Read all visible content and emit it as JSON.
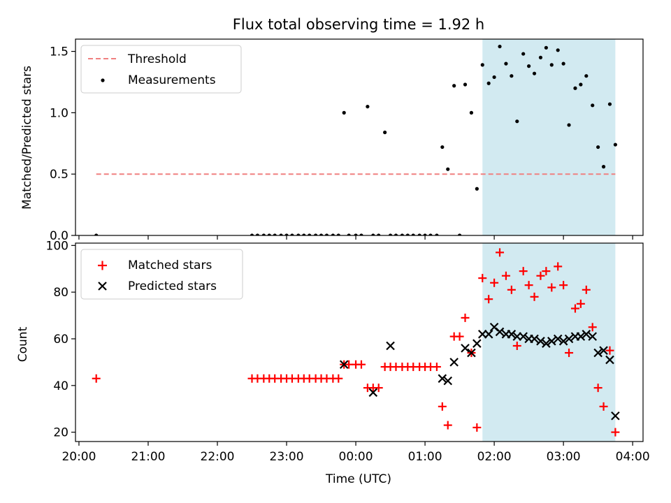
{
  "chart_data": [
    {
      "type": "scatter",
      "title": "Flux total observing time = 1.92 h",
      "xlabel": "",
      "ylabel": "Matched/Predicted stars",
      "xlim": [
        -4.05,
        4.15
      ],
      "ylim": [
        0,
        1.6
      ],
      "yticks": [
        0.0,
        0.5,
        1.0,
        1.5
      ],
      "ytick_labels": [
        "0.0",
        "0.5",
        "1.0",
        "1.5"
      ],
      "xticks": [
        -4,
        -3,
        -2,
        -1,
        0,
        1,
        2,
        3,
        4
      ],
      "grid": false,
      "legend_position": "top-left",
      "shaded_region": {
        "x": [
          1.83,
          3.75
        ],
        "color": "#add8e6"
      },
      "series": [
        {
          "name": "Threshold",
          "kind": "dashed-line",
          "color": "#f08080",
          "x": [
            -3.75,
            3.75
          ],
          "y": [
            0.5,
            0.5
          ]
        },
        {
          "name": "Measurements",
          "kind": "dots",
          "color": "#000000",
          "x": [
            -3.75,
            -1.5,
            -1.42,
            -1.33,
            -1.25,
            -1.17,
            -1.08,
            -1.0,
            -0.92,
            -0.83,
            -0.75,
            -0.67,
            -0.58,
            -0.5,
            -0.42,
            -0.33,
            -0.25,
            -0.17,
            -0.1,
            0.0,
            0.08,
            0.17,
            0.25,
            0.33,
            0.42,
            0.5,
            0.58,
            0.67,
            0.75,
            0.83,
            0.92,
            1.0,
            1.08,
            1.17,
            1.25,
            1.33,
            1.42,
            1.5,
            1.58,
            1.67,
            1.75,
            1.83,
            1.92,
            2.0,
            2.08,
            2.17,
            2.25,
            2.33,
            2.42,
            2.5,
            2.58,
            2.67,
            2.75,
            2.83,
            2.92,
            3.0,
            3.08,
            3.17,
            3.25,
            3.33,
            3.42,
            3.5,
            3.58,
            3.67,
            3.75
          ],
          "y": [
            0,
            0,
            0,
            0,
            0,
            0,
            0,
            0,
            0,
            0,
            0,
            0,
            0,
            0,
            0,
            0,
            0,
            1.0,
            0,
            0,
            0,
            1.05,
            0,
            0,
            0.84,
            0,
            0,
            0,
            0,
            0,
            0,
            0,
            0,
            0,
            0.72,
            0.54,
            1.22,
            0,
            1.23,
            1.0,
            0.38,
            1.39,
            1.24,
            1.29,
            1.54,
            1.4,
            1.3,
            0.93,
            1.48,
            1.38,
            1.32,
            1.45,
            1.53,
            1.39,
            1.51,
            1.4,
            0.9,
            1.2,
            1.23,
            1.3,
            1.06,
            0.72,
            0.56,
            1.07,
            0.74
          ]
        }
      ]
    },
    {
      "type": "scatter",
      "title": "",
      "xlabel": "Time (UTC)",
      "ylabel": "Count",
      "xlim": [
        -4.05,
        4.15
      ],
      "ylim": [
        16,
        101
      ],
      "yticks": [
        20,
        40,
        60,
        80,
        100
      ],
      "ytick_labels": [
        "20",
        "40",
        "60",
        "80",
        "100"
      ],
      "xticks": [
        -4,
        -3,
        -2,
        -1,
        0,
        1,
        2,
        3,
        4
      ],
      "xtick_labels": [
        "20:00",
        "21:00",
        "22:00",
        "23:00",
        "00:00",
        "01:00",
        "02:00",
        "03:00",
        "04:00"
      ],
      "grid": false,
      "legend_position": "top-left",
      "shaded_region": {
        "x": [
          1.83,
          3.75
        ],
        "color": "#add8e6"
      },
      "series": [
        {
          "name": "Matched stars",
          "marker": "plus",
          "color": "#ff0000",
          "x": [
            -3.75,
            -1.5,
            -1.42,
            -1.33,
            -1.25,
            -1.17,
            -1.08,
            -1.0,
            -0.92,
            -0.83,
            -0.75,
            -0.67,
            -0.58,
            -0.5,
            -0.42,
            -0.33,
            -0.25,
            -0.17,
            -0.1,
            0.0,
            0.08,
            0.17,
            0.25,
            0.33,
            0.42,
            0.5,
            0.58,
            0.67,
            0.75,
            0.83,
            0.92,
            1.0,
            1.08,
            1.17,
            1.25,
            1.33,
            1.42,
            1.5,
            1.58,
            1.67,
            1.75,
            1.83,
            1.92,
            2.0,
            2.08,
            2.17,
            2.25,
            2.33,
            2.42,
            2.5,
            2.58,
            2.67,
            2.75,
            2.83,
            2.92,
            3.0,
            3.08,
            3.17,
            3.25,
            3.33,
            3.42,
            3.5,
            3.58,
            3.67,
            3.75
          ],
          "y": [
            43,
            43,
            43,
            43,
            43,
            43,
            43,
            43,
            43,
            43,
            43,
            43,
            43,
            43,
            43,
            43,
            43,
            49,
            49,
            49,
            49,
            39,
            39,
            39,
            48,
            48,
            48,
            48,
            48,
            48,
            48,
            48,
            48,
            48,
            31,
            23,
            61,
            61,
            69,
            54,
            22,
            86,
            77,
            84,
            97,
            87,
            81,
            57,
            89,
            83,
            78,
            87,
            89,
            82,
            91,
            83,
            54,
            73,
            75,
            81,
            65,
            39,
            31,
            55,
            20
          ]
        },
        {
          "name": "Predicted stars",
          "marker": "x",
          "color": "#000000",
          "x": [
            -0.17,
            0.25,
            0.5,
            1.25,
            1.33,
            1.42,
            1.58,
            1.67,
            1.75,
            1.83,
            1.92,
            2.0,
            2.08,
            2.17,
            2.25,
            2.33,
            2.42,
            2.5,
            2.58,
            2.67,
            2.75,
            2.83,
            2.92,
            3.0,
            3.08,
            3.17,
            3.25,
            3.33,
            3.42,
            3.5,
            3.58,
            3.67,
            3.75
          ],
          "y": [
            49,
            37,
            57,
            43,
            42,
            50,
            56,
            54,
            58,
            62,
            62,
            65,
            63,
            62,
            62,
            61,
            61,
            60,
            60,
            59,
            58,
            59,
            60,
            59,
            60,
            61,
            61,
            62,
            61,
            54,
            55,
            51,
            27
          ]
        }
      ]
    }
  ]
}
